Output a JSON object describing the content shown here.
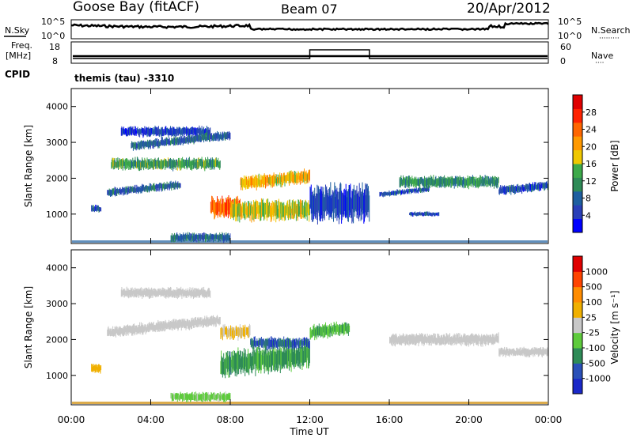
{
  "header": {
    "station": "Goose Bay (fitACF)",
    "beam": "Beam 07",
    "date": "20/Apr/2012"
  },
  "noise_panel": {
    "left_label": "N.Sky",
    "right_label": "N.Search",
    "right_label_dots": "·········",
    "left_ticks": [
      "10^5",
      "10^0"
    ],
    "right_ticks": [
      "10^5",
      "10^0"
    ]
  },
  "freq_panel": {
    "left_label_line1": "Freq.",
    "left_label_line2": "[MHz]",
    "right_label": "Nave",
    "right_label_dots": "····",
    "left_ticks": [
      "18",
      "8"
    ],
    "right_ticks": [
      "60",
      "0"
    ],
    "nave_high_start_h": 12,
    "nave_high_end_h": 15
  },
  "cpid": {
    "label": "CPID",
    "value": "themis (tau) -3310"
  },
  "chart_data": [
    {
      "type": "heatmap",
      "ylabel": "Slant Range [km]",
      "xlabel": "",
      "ylim": [
        180,
        4500
      ],
      "xlim": [
        0,
        24
      ],
      "y_ticks": [
        "4000",
        "3000",
        "2000",
        "1000"
      ],
      "colorbar": {
        "label": "Power [dB]",
        "ticks": [
          "28",
          "24",
          "20",
          "16",
          "12",
          "8",
          "4"
        ],
        "colors": [
          "#0000ff",
          "#2a3fb8",
          "#1e5fa0",
          "#2e8b57",
          "#3daa4a",
          "#f0c800",
          "#ff9900",
          "#ff6600",
          "#ff2200",
          "#e00000"
        ],
        "range": [
          0,
          30
        ]
      },
      "bands": [
        {
          "t0": 1.0,
          "t1": 1.5,
          "r": 1150,
          "w": 150,
          "v": 6
        },
        {
          "t0": 1.8,
          "t1": 5.5,
          "r": 1600,
          "w": 180,
          "v": 7
        },
        {
          "t0": 2.0,
          "t1": 7.5,
          "r": 2400,
          "w": 260,
          "v": 12
        },
        {
          "t0": 2.5,
          "t1": 7.0,
          "r": 3300,
          "w": 220,
          "v": 5
        },
        {
          "t0": 3.0,
          "t1": 8.0,
          "r": 2900,
          "w": 200,
          "v": 7
        },
        {
          "t0": 7.0,
          "t1": 8.5,
          "r": 1200,
          "w": 450,
          "v": 22
        },
        {
          "t0": 8.0,
          "t1": 12.0,
          "r": 1100,
          "w": 450,
          "v": 16
        },
        {
          "t0": 8.5,
          "t1": 12.0,
          "r": 1850,
          "w": 300,
          "v": 18
        },
        {
          "t0": 5.0,
          "t1": 8.0,
          "r": 350,
          "w": 200,
          "v": 8
        },
        {
          "t0": 12.0,
          "t1": 15.0,
          "r": 1300,
          "w": 800,
          "v": 5
        },
        {
          "t0": 15.5,
          "t1": 18.0,
          "r": 1550,
          "w": 120,
          "v": 6
        },
        {
          "t0": 16.5,
          "t1": 21.5,
          "r": 1900,
          "w": 260,
          "v": 11
        },
        {
          "t0": 17.0,
          "t1": 18.5,
          "r": 1000,
          "w": 100,
          "v": 6
        },
        {
          "t0": 21.5,
          "t1": 24.0,
          "r": 1650,
          "w": 200,
          "v": 6
        }
      ]
    },
    {
      "type": "heatmap",
      "ylabel": "Slant Range [km]",
      "xlabel": "Time UT",
      "ylim": [
        180,
        4500
      ],
      "xlim": [
        0,
        24
      ],
      "y_ticks": [
        "4000",
        "3000",
        "2000",
        "1000"
      ],
      "x_ticks": [
        "00:00",
        "04:00",
        "08:00",
        "12:00",
        "16:00",
        "20:00",
        "00:00"
      ],
      "colorbar": {
        "label": "Velocity [m s⁻¹]",
        "ticks": [
          "1000",
          "500",
          "100",
          "25",
          "-25",
          "-100",
          "-500",
          "-1000"
        ],
        "colors": [
          "#1a28c8",
          "#2a50b8",
          "#2e8b57",
          "#5ecb3c",
          "#c8c8c8",
          "#f0b000",
          "#ff8c00",
          "#ff4400",
          "#e00000"
        ],
        "range": [
          -1000,
          1000
        ]
      },
      "bands": [
        {
          "t0": 1.0,
          "t1": 1.5,
          "r": 1200,
          "w": 200,
          "v": 200
        },
        {
          "t0": 1.8,
          "t1": 7.5,
          "r": 2200,
          "w": 240,
          "v": 0
        },
        {
          "t0": 2.5,
          "t1": 7.0,
          "r": 3300,
          "w": 220,
          "v": 0
        },
        {
          "t0": 7.5,
          "t1": 9.0,
          "r": 2200,
          "w": 300,
          "v": 120
        },
        {
          "t0": 7.5,
          "t1": 12.0,
          "r": 1300,
          "w": 550,
          "v": -400
        },
        {
          "t0": 5.0,
          "t1": 8.0,
          "r": 400,
          "w": 200,
          "v": -150
        },
        {
          "t0": 9.0,
          "t1": 12.0,
          "r": 1900,
          "w": 250,
          "v": -600
        },
        {
          "t0": 12.0,
          "t1": 14.0,
          "r": 2200,
          "w": 300,
          "v": -300
        },
        {
          "t0": 16.0,
          "t1": 21.5,
          "r": 2000,
          "w": 260,
          "v": 0
        },
        {
          "t0": 21.5,
          "t1": 24.0,
          "r": 1650,
          "w": 200,
          "v": 50
        }
      ]
    }
  ]
}
